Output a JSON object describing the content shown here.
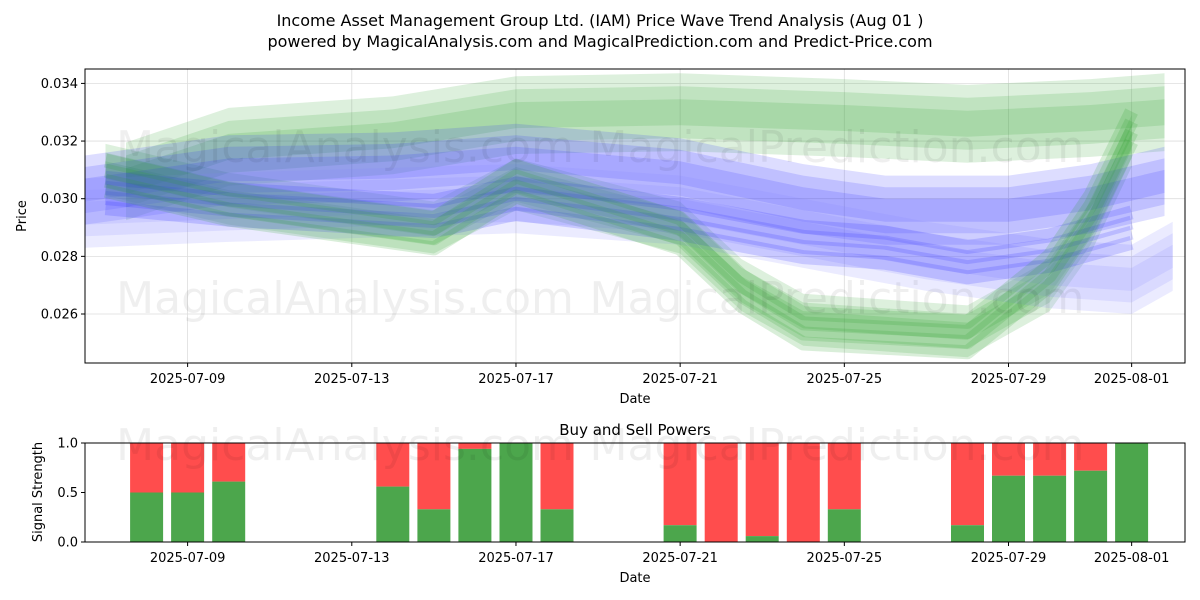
{
  "titles": {
    "line1": "Income Asset Management Group Ltd. (IAM) Price Wave Trend Analysis (Aug 01 )",
    "line2": "powered by MagicalAnalysis.com and MagicalPrediction.com and Predict-Price.com"
  },
  "watermarks": {
    "left": "MagicalAnalysis.com",
    "right": "MagicalPrediction.com"
  },
  "colors": {
    "green": "#2ca02c",
    "blue": "#2b2bff",
    "light_blue": "#8080ff",
    "buy": "#4ca64c",
    "sell": "#ff4d4d"
  },
  "chart_data": [
    {
      "type": "area",
      "xlabel": "Date",
      "ylabel": "Price",
      "x_range": [
        "2025-07-06",
        "2025-08-02"
      ],
      "ylim": [
        0.0243,
        0.0345
      ],
      "xticks": [
        "2025-07-09",
        "2025-07-13",
        "2025-07-17",
        "2025-07-21",
        "2025-07-25",
        "2025-07-29",
        "2025-08-01"
      ],
      "yticks": [
        0.026,
        0.028,
        0.03,
        0.032,
        0.034
      ],
      "grid": true,
      "bands": [
        {
          "name": "green-upper-band",
          "color": "green",
          "points": [
            [
              "2025-07-07.5",
              0.0306
            ],
            [
              "2025-07-10",
              0.0318
            ],
            [
              "2025-07-14",
              0.0322
            ],
            [
              "2025-07-17",
              0.0329
            ],
            [
              "2025-07-21",
              0.033
            ],
            [
              "2025-07-25",
              0.0328
            ],
            [
              "2025-07-28",
              0.0326
            ],
            [
              "2025-07-31",
              0.0328
            ],
            [
              "2025-08-01.8",
              0.033
            ]
          ],
          "width": 0.0018
        },
        {
          "name": "green-trend-band",
          "color": "green",
          "points": [
            [
              "2025-07-07",
              0.031
            ],
            [
              "2025-07-10",
              0.03
            ],
            [
              "2025-07-15",
              0.029
            ],
            [
              "2025-07-17",
              0.0305
            ],
            [
              "2025-07-21",
              0.029
            ],
            [
              "2025-07-22.5",
              0.027
            ],
            [
              "2025-07-24",
              0.0258
            ],
            [
              "2025-07-28",
              0.0254
            ],
            [
              "2025-07-30",
              0.027
            ],
            [
              "2025-07-31",
              0.029
            ],
            [
              "2025-08-01",
              0.032
            ]
          ],
          "width": 0.0012
        },
        {
          "name": "blue-main-band",
          "color": "blue",
          "points": [
            [
              "2025-07-06.5",
              0.0303
            ],
            [
              "2025-07-10",
              0.031
            ],
            [
              "2025-07-14",
              0.0311
            ],
            [
              "2025-07-17",
              0.0314
            ],
            [
              "2025-07-21",
              0.0309
            ],
            [
              "2025-07-24",
              0.03
            ],
            [
              "2025-07-26",
              0.0296
            ],
            [
              "2025-07-29",
              0.0296
            ],
            [
              "2025-07-31",
              0.03
            ],
            [
              "2025-08-01.8",
              0.0306
            ]
          ],
          "width": 0.0016
        },
        {
          "name": "blue-lower-band",
          "color": "light_blue",
          "points": [
            [
              "2025-07-06.5",
              0.0295
            ],
            [
              "2025-07-10",
              0.0297
            ],
            [
              "2025-07-17",
              0.03
            ],
            [
              "2025-07-21",
              0.0296
            ],
            [
              "2025-07-24",
              0.0288
            ],
            [
              "2025-07-27",
              0.028
            ],
            [
              "2025-07-30",
              0.0274
            ],
            [
              "2025-08-01",
              0.0272
            ],
            [
              "2025-08-02",
              0.028
            ]
          ],
          "width": 0.0016
        }
      ],
      "trend_lines": [
        {
          "name": "blue-trend-line",
          "color": "blue",
          "points": [
            [
              "2025-07-07",
              0.0302
            ],
            [
              "2025-07-10",
              0.0298
            ],
            [
              "2025-07-15",
              0.0294
            ],
            [
              "2025-07-17",
              0.03
            ],
            [
              "2025-07-21",
              0.0293
            ],
            [
              "2025-07-24",
              0.0285
            ],
            [
              "2025-07-26",
              0.0283
            ],
            [
              "2025-07-28",
              0.0278
            ],
            [
              "2025-07-30",
              0.0282
            ],
            [
              "2025-08-01",
              0.029
            ]
          ]
        },
        {
          "name": "green-trend-line",
          "color": "green",
          "points": [
            [
              "2025-07-07",
              0.0308
            ],
            [
              "2025-07-10",
              0.0298
            ],
            [
              "2025-07-15",
              0.0288
            ],
            [
              "2025-07-17",
              0.0306
            ],
            [
              "2025-07-21",
              0.0288
            ],
            [
              "2025-07-22.5",
              0.0268
            ],
            [
              "2025-07-24",
              0.0255
            ],
            [
              "2025-07-28",
              0.0252
            ],
            [
              "2025-07-30",
              0.0275
            ],
            [
              "2025-07-31",
              0.0296
            ],
            [
              "2025-08-01",
              0.0325
            ]
          ]
        }
      ]
    },
    {
      "type": "bar",
      "title": "Buy and Sell Powers",
      "xlabel": "Date",
      "ylabel": "Signal Strength",
      "ylim": [
        0,
        1
      ],
      "yticks": [
        0.0,
        0.5,
        1.0
      ],
      "xticks": [
        "2025-07-09",
        "2025-07-13",
        "2025-07-17",
        "2025-07-21",
        "2025-07-25",
        "2025-07-29",
        "2025-08-01"
      ],
      "series": [
        {
          "name": "Buy",
          "color": "buy"
        },
        {
          "name": "Sell",
          "color": "sell"
        }
      ],
      "bars": [
        {
          "date": "2025-07-08",
          "buy": 0.5
        },
        {
          "date": "2025-07-09",
          "buy": 0.5
        },
        {
          "date": "2025-07-10",
          "buy": 0.61
        },
        {
          "date": "2025-07-14",
          "buy": 0.56
        },
        {
          "date": "2025-07-15",
          "buy": 0.33
        },
        {
          "date": "2025-07-16",
          "buy": 0.94
        },
        {
          "date": "2025-07-17",
          "buy": 1.0
        },
        {
          "date": "2025-07-18",
          "buy": 0.33
        },
        {
          "date": "2025-07-21",
          "buy": 0.17
        },
        {
          "date": "2025-07-22",
          "buy": 0.0
        },
        {
          "date": "2025-07-23",
          "buy": 0.06
        },
        {
          "date": "2025-07-24",
          "buy": 0.0
        },
        {
          "date": "2025-07-25",
          "buy": 0.33
        },
        {
          "date": "2025-07-28",
          "buy": 0.17
        },
        {
          "date": "2025-07-29",
          "buy": 0.67
        },
        {
          "date": "2025-07-30",
          "buy": 0.67
        },
        {
          "date": "2025-07-31",
          "buy": 0.72
        },
        {
          "date": "2025-08-01",
          "buy": 1.0
        }
      ]
    }
  ]
}
